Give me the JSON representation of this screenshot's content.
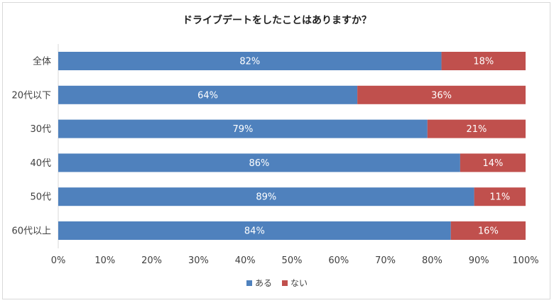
{
  "chart_data": {
    "type": "bar",
    "orientation": "horizontal-stacked-100",
    "title": "ドライブデートをしたことはありますか？",
    "categories": [
      "全体",
      "20代以下",
      "30代",
      "40代",
      "50代",
      "60代以上"
    ],
    "series": [
      {
        "name": "ある",
        "color": "#4f81bd",
        "values": [
          82,
          64,
          79,
          86,
          89,
          84
        ],
        "labels": [
          "82%",
          "64%",
          "79%",
          "86%",
          "89%",
          "84%"
        ]
      },
      {
        "name": "ない",
        "color": "#c0504d",
        "values": [
          18,
          36,
          21,
          14,
          11,
          16
        ],
        "labels": [
          "18%",
          "36%",
          "21%",
          "14%",
          "11%",
          "16%"
        ]
      }
    ],
    "xlim": [
      0,
      100
    ],
    "xticks": [
      "0%",
      "10%",
      "20%",
      "30%",
      "40%",
      "50%",
      "60%",
      "70%",
      "80%",
      "90%",
      "100%"
    ],
    "legend": "bottom",
    "grid": false
  }
}
